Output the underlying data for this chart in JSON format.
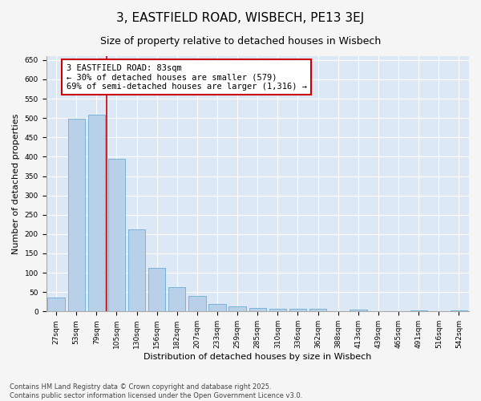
{
  "title": "3, EASTFIELD ROAD, WISBECH, PE13 3EJ",
  "subtitle": "Size of property relative to detached houses in Wisbech",
  "xlabel": "Distribution of detached houses by size in Wisbech",
  "ylabel": "Number of detached properties",
  "categories": [
    "27sqm",
    "53sqm",
    "79sqm",
    "105sqm",
    "130sqm",
    "156sqm",
    "182sqm",
    "207sqm",
    "233sqm",
    "259sqm",
    "285sqm",
    "310sqm",
    "336sqm",
    "362sqm",
    "388sqm",
    "413sqm",
    "439sqm",
    "465sqm",
    "491sqm",
    "516sqm",
    "542sqm"
  ],
  "values": [
    35,
    499,
    508,
    395,
    213,
    112,
    63,
    41,
    19,
    14,
    10,
    7,
    7,
    6,
    0,
    5,
    0,
    0,
    3,
    0,
    2
  ],
  "bar_color": "#b8d0e8",
  "bar_edgecolor": "#6aaed6",
  "vline_x": 2.5,
  "vline_color": "#cc0000",
  "annotation_text": "3 EASTFIELD ROAD: 83sqm\n← 30% of detached houses are smaller (579)\n69% of semi-detached houses are larger (1,316) →",
  "annotation_box_color": "#ffffff",
  "annotation_box_edgecolor": "#cc0000",
  "ylim": [
    0,
    660
  ],
  "yticks": [
    0,
    50,
    100,
    150,
    200,
    250,
    300,
    350,
    400,
    450,
    500,
    550,
    600,
    650
  ],
  "bg_color": "#dce8f5",
  "fig_color": "#f5f5f5",
  "footer_line1": "Contains HM Land Registry data © Crown copyright and database right 2025.",
  "footer_line2": "Contains public sector information licensed under the Open Government Licence v3.0.",
  "title_fontsize": 11,
  "subtitle_fontsize": 9,
  "axis_label_fontsize": 8,
  "tick_fontsize": 6.5,
  "annotation_fontsize": 7.5,
  "footer_fontsize": 6
}
